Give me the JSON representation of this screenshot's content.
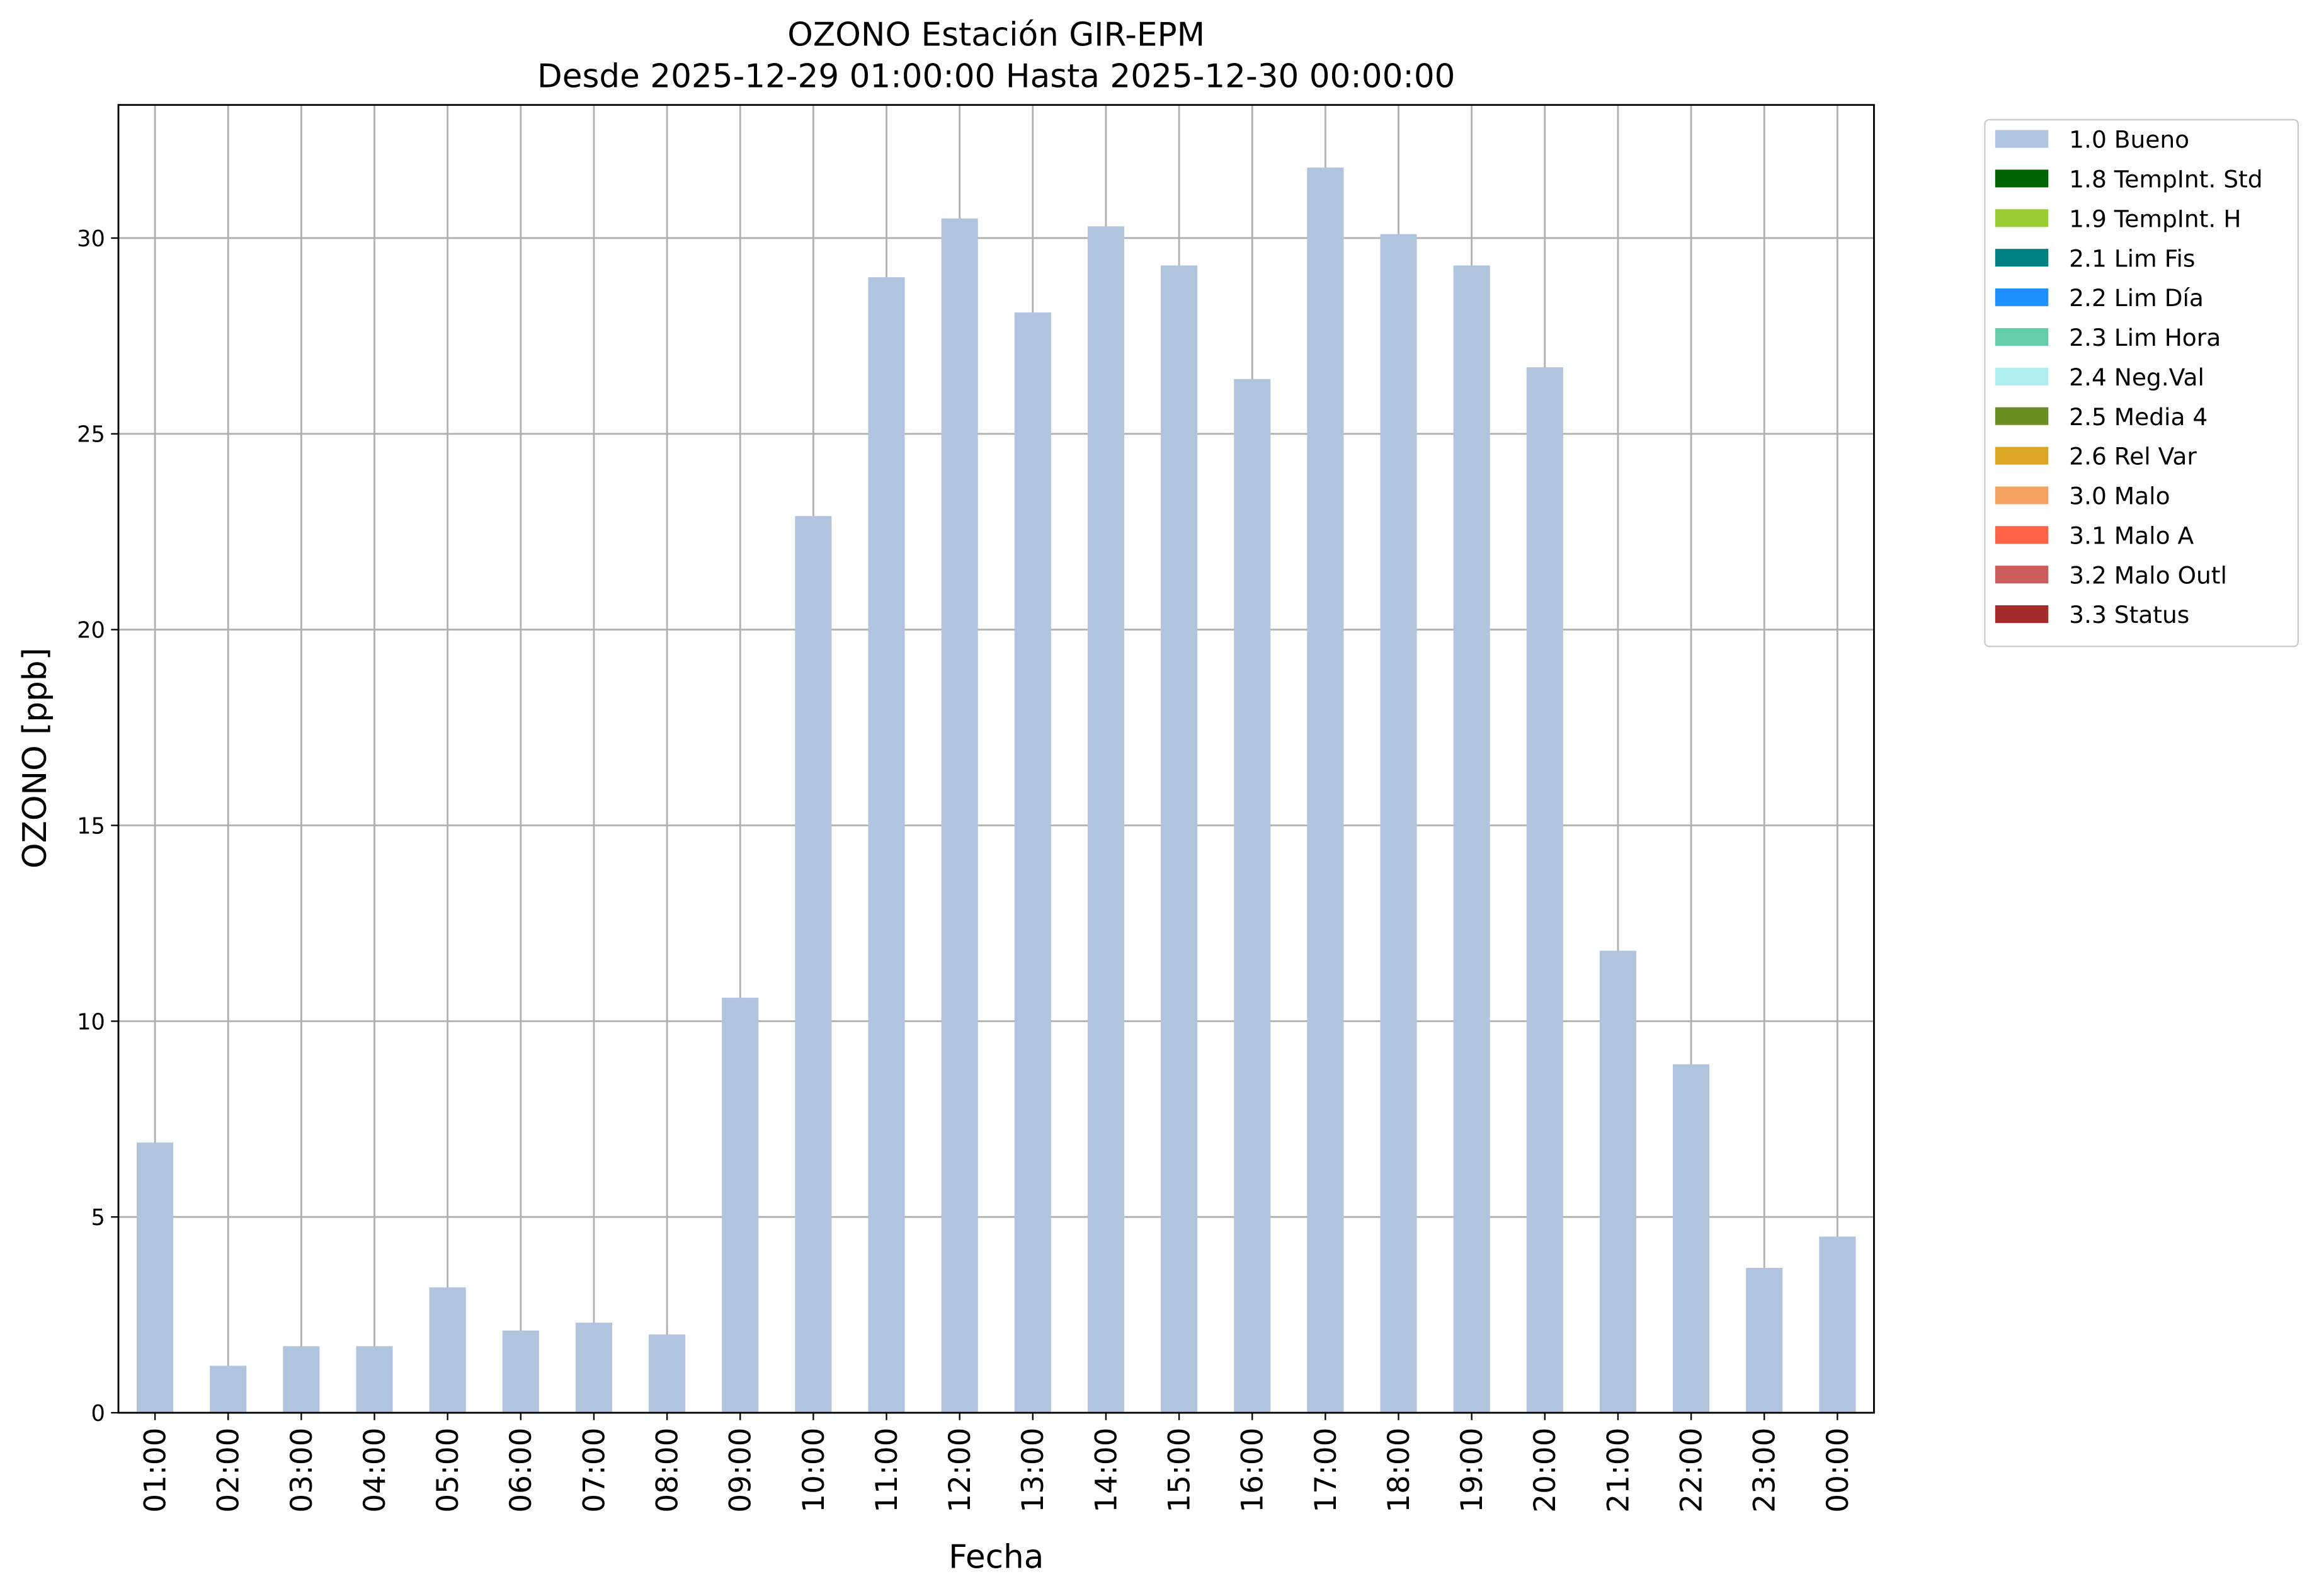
{
  "chart_data": {
    "type": "stacked_bar",
    "title": "OZONO Estación GIR-EPM",
    "subtitle": "Desde 2025-12-29 01:00:00 Hasta 2025-12-30 00:00:00",
    "x_label": "Fecha",
    "y_label": "OZONO [ppb]",
    "categories": [
      "01:00",
      "02:00",
      "03:00",
      "04:00",
      "05:00",
      "06:00",
      "07:00",
      "08:00",
      "09:00",
      "10:00",
      "11:00",
      "12:00",
      "13:00",
      "14:00",
      "15:00",
      "16:00",
      "17:00",
      "18:00",
      "19:00",
      "20:00",
      "21:00",
      "22:00",
      "23:00",
      "00:00"
    ],
    "series": [
      {
        "name": "1.0 Bueno",
        "color": "#b0c4de",
        "values": [
          6.9,
          1.2,
          1.7,
          1.7,
          3.2,
          2.1,
          2.3,
          2.0,
          10.6,
          22.9,
          29.0,
          30.5,
          28.1,
          30.3,
          29.3,
          26.4,
          31.8,
          30.1,
          29.3,
          26.7,
          11.8,
          8.9,
          3.7,
          4.5
        ]
      },
      {
        "name": "1.8 TempInt. Std",
        "color": "#006400",
        "values": [
          0,
          0,
          0,
          0,
          0,
          0,
          0,
          0,
          0,
          0,
          0,
          0,
          0,
          0,
          0,
          0,
          0,
          0,
          0,
          0,
          0,
          0,
          0,
          0
        ]
      },
      {
        "name": "1.9 TempInt. H",
        "color": "#9acd32",
        "values": [
          0,
          0,
          0,
          0,
          0,
          0,
          0,
          0,
          0,
          0,
          0,
          0,
          0,
          0,
          0,
          0,
          0,
          0,
          0,
          0,
          0,
          0,
          0,
          0
        ]
      },
      {
        "name": "2.1 Lim Fis",
        "color": "#008080",
        "values": [
          0,
          0,
          0,
          0,
          0,
          0,
          0,
          0,
          0,
          0,
          0,
          0,
          0,
          0,
          0,
          0,
          0,
          0,
          0,
          0,
          0,
          0,
          0,
          0
        ]
      },
      {
        "name": "2.2 Lim Día",
        "color": "#1e90ff",
        "values": [
          0,
          0,
          0,
          0,
          0,
          0,
          0,
          0,
          0,
          0,
          0,
          0,
          0,
          0,
          0,
          0,
          0,
          0,
          0,
          0,
          0,
          0,
          0,
          0
        ]
      },
      {
        "name": "2.3 Lim Hora",
        "color": "#66cdaa",
        "values": [
          0,
          0,
          0,
          0,
          0,
          0,
          0,
          0,
          0,
          0,
          0,
          0,
          0,
          0,
          0,
          0,
          0,
          0,
          0,
          0,
          0,
          0,
          0,
          0
        ]
      },
      {
        "name": "2.4 Neg.Val",
        "color": "#afeeee",
        "values": [
          0,
          0,
          0,
          0,
          0,
          0,
          0,
          0,
          0,
          0,
          0,
          0,
          0,
          0,
          0,
          0,
          0,
          0,
          0,
          0,
          0,
          0,
          0,
          0
        ]
      },
      {
        "name": "2.5 Media 4",
        "color": "#6b8e23",
        "values": [
          0,
          0,
          0,
          0,
          0,
          0,
          0,
          0,
          0,
          0,
          0,
          0,
          0,
          0,
          0,
          0,
          0,
          0,
          0,
          0,
          0,
          0,
          0,
          0
        ]
      },
      {
        "name": "2.6 Rel Var",
        "color": "#daa520",
        "values": [
          0,
          0,
          0,
          0,
          0,
          0,
          0,
          0,
          0,
          0,
          0,
          0,
          0,
          0,
          0,
          0,
          0,
          0,
          0,
          0,
          0,
          0,
          0,
          0
        ]
      },
      {
        "name": "3.0 Malo",
        "color": "#f4a460",
        "values": [
          0,
          0,
          0,
          0,
          0,
          0,
          0,
          0,
          0,
          0,
          0,
          0,
          0,
          0,
          0,
          0,
          0,
          0,
          0,
          0,
          0,
          0,
          0,
          0
        ]
      },
      {
        "name": "3.1 Malo A",
        "color": "#ff6347",
        "values": [
          0,
          0,
          0,
          0,
          0,
          0,
          0,
          0,
          0,
          0,
          0,
          0,
          0,
          0,
          0,
          0,
          0,
          0,
          0,
          0,
          0,
          0,
          0,
          0
        ]
      },
      {
        "name": "3.2 Malo Outl",
        "color": "#cd5c5c",
        "values": [
          0,
          0,
          0,
          0,
          0,
          0,
          0,
          0,
          0,
          0,
          0,
          0,
          0,
          0,
          0,
          0,
          0,
          0,
          0,
          0,
          0,
          0,
          0,
          0
        ]
      },
      {
        "name": "3.3 Status",
        "color": "#a52a2a",
        "values": [
          0,
          0,
          0,
          0,
          0,
          0,
          0,
          0,
          0,
          0,
          0,
          0,
          0,
          0,
          0,
          0,
          0,
          0,
          0,
          0,
          0,
          0,
          0,
          0
        ]
      }
    ],
    "ylim": [
      0,
      33.4
    ],
    "yticks": [
      0,
      5,
      10,
      15,
      20,
      25,
      30
    ],
    "grid": true,
    "legend": "outside-upper-right"
  }
}
